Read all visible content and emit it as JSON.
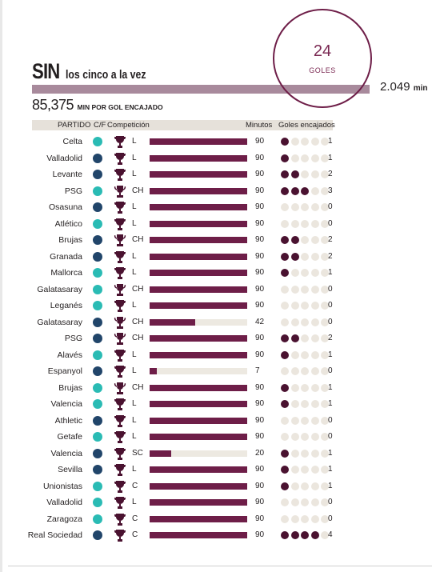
{
  "title": {
    "big": "SIN",
    "small": "los cinco a la vez"
  },
  "goals_badge": {
    "number": "24",
    "label": "GOLES"
  },
  "total_minutes": {
    "value": "2.049",
    "unit": "min"
  },
  "per_goal": {
    "value": "85,375",
    "label": "MIN POR GOL ENCAJADO"
  },
  "headers": {
    "partido": "PARTIDO",
    "cf": "C/F",
    "competicion": "Competición",
    "minutos": "Minutos",
    "goles": "Goles encajados"
  },
  "colors": {
    "bar": "#6e1e48",
    "track": "#ede9e1",
    "casa": "#2abbb4",
    "fuera": "#21456a",
    "goal_dot": "#4a1230",
    "empty_dot": "#ebe6de",
    "total_bar": "#a88a9c"
  },
  "icons": {
    "liga": "trophy-icon",
    "champions": "champions-cup-icon"
  },
  "chart_data": {
    "type": "table",
    "minutes_max": 90,
    "goals_max": 5,
    "columns": [
      "Partido",
      "C/F",
      "Competición",
      "Minutos",
      "Goles encajados"
    ],
    "rows": [
      {
        "team": "Celta",
        "cf": "C",
        "comp": "L",
        "minutes": 90,
        "goals": 1
      },
      {
        "team": "Valladolid",
        "cf": "F",
        "comp": "L",
        "minutes": 90,
        "goals": 1
      },
      {
        "team": "Levante",
        "cf": "F",
        "comp": "L",
        "minutes": 90,
        "goals": 2
      },
      {
        "team": "PSG",
        "cf": "C",
        "comp": "CH",
        "minutes": 90,
        "goals": 3
      },
      {
        "team": "Osasuna",
        "cf": "F",
        "comp": "L",
        "minutes": 90,
        "goals": 0
      },
      {
        "team": "Atlético",
        "cf": "C",
        "comp": "L",
        "minutes": 90,
        "goals": 0
      },
      {
        "team": "Brujas",
        "cf": "F",
        "comp": "CH",
        "minutes": 90,
        "goals": 2
      },
      {
        "team": "Granada",
        "cf": "F",
        "comp": "L",
        "minutes": 90,
        "goals": 2
      },
      {
        "team": "Mallorca",
        "cf": "C",
        "comp": "L",
        "minutes": 90,
        "goals": 1
      },
      {
        "team": "Galatasaray",
        "cf": "C",
        "comp": "CH",
        "minutes": 90,
        "goals": 0
      },
      {
        "team": "Leganés",
        "cf": "C",
        "comp": "L",
        "minutes": 90,
        "goals": 0
      },
      {
        "team": "Galatasaray",
        "cf": "F",
        "comp": "CH",
        "minutes": 42,
        "goals": 0
      },
      {
        "team": "PSG",
        "cf": "F",
        "comp": "CH",
        "minutes": 90,
        "goals": 2
      },
      {
        "team": "Alavés",
        "cf": "C",
        "comp": "L",
        "minutes": 90,
        "goals": 1
      },
      {
        "team": "Espanyol",
        "cf": "F",
        "comp": "L",
        "minutes": 7,
        "goals": 0
      },
      {
        "team": "Brujas",
        "cf": "C",
        "comp": "CH",
        "minutes": 90,
        "goals": 1
      },
      {
        "team": "Valencia",
        "cf": "C",
        "comp": "L",
        "minutes": 90,
        "goals": 1
      },
      {
        "team": "Athletic",
        "cf": "F",
        "comp": "L",
        "minutes": 90,
        "goals": 0
      },
      {
        "team": "Getafe",
        "cf": "C",
        "comp": "L",
        "minutes": 90,
        "goals": 0
      },
      {
        "team": "Valencia",
        "cf": "F",
        "comp": "SC",
        "minutes": 20,
        "goals": 1
      },
      {
        "team": "Sevilla",
        "cf": "F",
        "comp": "L",
        "minutes": 90,
        "goals": 1
      },
      {
        "team": "Unionistas",
        "cf": "C",
        "comp": "C",
        "minutes": 90,
        "goals": 1
      },
      {
        "team": "Valladolid",
        "cf": "C",
        "comp": "L",
        "minutes": 90,
        "goals": 0
      },
      {
        "team": "Zaragoza",
        "cf": "C",
        "comp": "C",
        "minutes": 90,
        "goals": 0
      },
      {
        "team": "Real Sociedad",
        "cf": "F",
        "comp": "C",
        "minutes": 90,
        "goals": 4
      }
    ]
  }
}
